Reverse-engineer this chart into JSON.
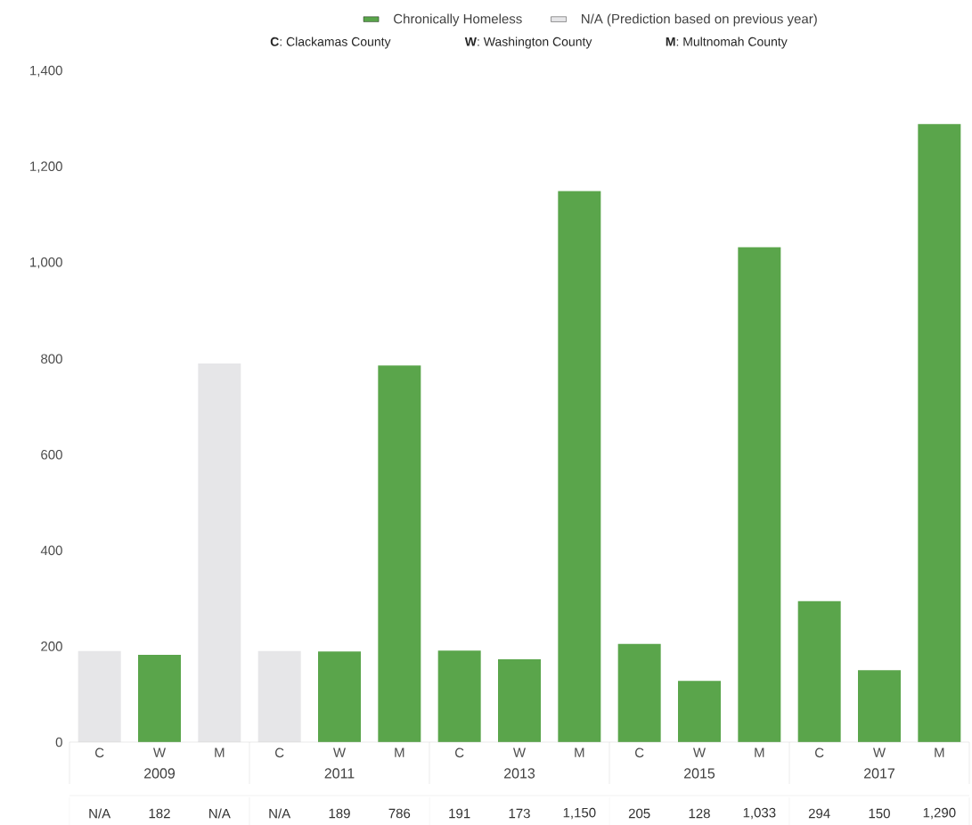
{
  "chart_data": {
    "type": "bar",
    "categories": [
      "C",
      "W",
      "M",
      "C",
      "W",
      "M",
      "C",
      "W",
      "M",
      "C",
      "W",
      "M",
      "C",
      "W",
      "M"
    ],
    "series": [
      {
        "name": "Chronically Homeless",
        "color": "#5aa54b",
        "values": [
          null,
          182,
          null,
          null,
          189,
          786,
          191,
          173,
          1150,
          205,
          128,
          1033,
          294,
          150,
          1290
        ],
        "value_labels": [
          "N/A",
          "182",
          "N/A",
          "N/A",
          "189",
          "786",
          "191",
          "173",
          "1,150",
          "205",
          "128",
          "1,033",
          "294",
          "150",
          "1,290"
        ]
      },
      {
        "name": "N/A (Prediction based on previous year)",
        "color": "#e6e6e8",
        "values": [
          190,
          null,
          790,
          190,
          null,
          null,
          null,
          null,
          null,
          null,
          null,
          null,
          null,
          null,
          null
        ]
      }
    ],
    "ylim": [
      0,
      1400
    ],
    "yticks": [
      0,
      {
        "value": 200,
        "label": "200"
      },
      {
        "value": 400,
        "label": "400"
      },
      {
        "value": 600,
        "label": "600"
      },
      {
        "value": 800,
        "label": "800"
      },
      {
        "value": 1000,
        "label": "1,000"
      },
      {
        "value": 1200,
        "label": "1,200"
      },
      {
        "value": 1400,
        "label": "1,400"
      }
    ],
    "annotations": [
      "2009",
      "2011",
      "2013",
      "2015",
      "2017",
      "**C**: Clackamas County",
      "**W**: Washington County",
      "**M**: Multnomah County"
    ],
    "legend": "top",
    "grid": false
  }
}
